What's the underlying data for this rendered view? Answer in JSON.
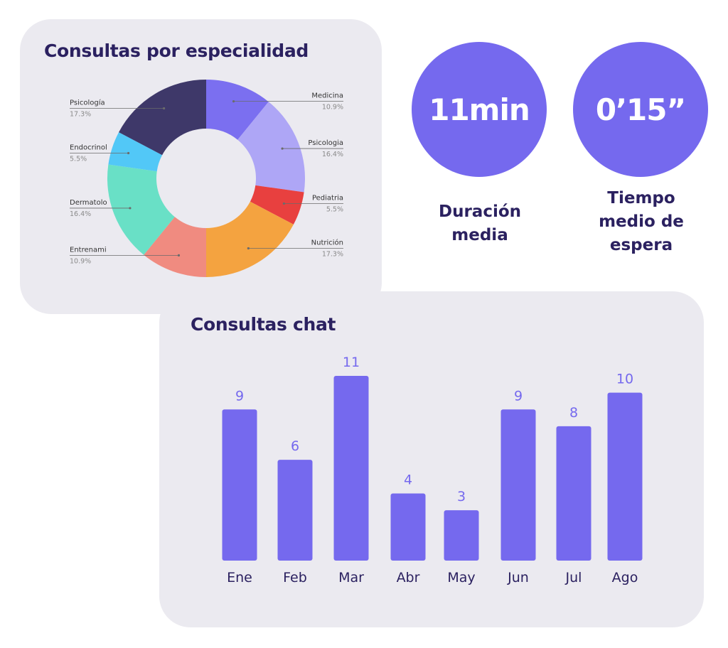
{
  "pie_card": {
    "title": "Consultas por especialidad"
  },
  "stats": {
    "duration_value": "11min",
    "duration_label_line1": "Duración",
    "duration_label_line2": "media",
    "wait_value": "0’15”",
    "wait_label_line1": "Tiempo",
    "wait_label_line2": "medio de",
    "wait_label_line3": "espera"
  },
  "bar_card": {
    "title": "Consultas chat"
  },
  "colors": {
    "accent": "#7569ee",
    "title": "#2b2160",
    "card_bg": "#ebeaf0"
  },
  "chart_data": [
    {
      "type": "pie",
      "donut": true,
      "title": "Consultas por especialidad",
      "slices": [
        {
          "label": "Medicina",
          "pct_label": "10.9%",
          "value": 10.9,
          "color": "#7b6ff0"
        },
        {
          "label": "Psicologia",
          "pct_label": "16.4%",
          "value": 16.4,
          "color": "#aea6f6"
        },
        {
          "label": "Pediatria",
          "pct_label": "5.5%",
          "value": 5.5,
          "color": "#e8403f"
        },
        {
          "label": "Nutrición",
          "pct_label": "17.3%",
          "value": 17.3,
          "color": "#f4a340"
        },
        {
          "label": "Entrenami",
          "pct_label": "10.9%",
          "value": 10.9,
          "color": "#f08b80"
        },
        {
          "label": "Dermatolo",
          "pct_label": "16.4%",
          "value": 16.4,
          "color": "#69e0c6"
        },
        {
          "label": "Endocrinol",
          "pct_label": "5.5%",
          "value": 5.5,
          "color": "#52c8f7"
        },
        {
          "label": "Psicología",
          "pct_label": "17.3%",
          "value": 17.3,
          "color": "#3e3869"
        }
      ]
    },
    {
      "type": "bar",
      "title": "Consultas chat",
      "categories": [
        "Ene",
        "Feb",
        "Mar",
        "Abr",
        "May",
        "Jun",
        "Jul",
        "Ago"
      ],
      "values": [
        9,
        6,
        11,
        4,
        3,
        9,
        8,
        10
      ],
      "ylim": [
        0,
        11
      ],
      "grid": false,
      "color": "#7569ee"
    }
  ]
}
